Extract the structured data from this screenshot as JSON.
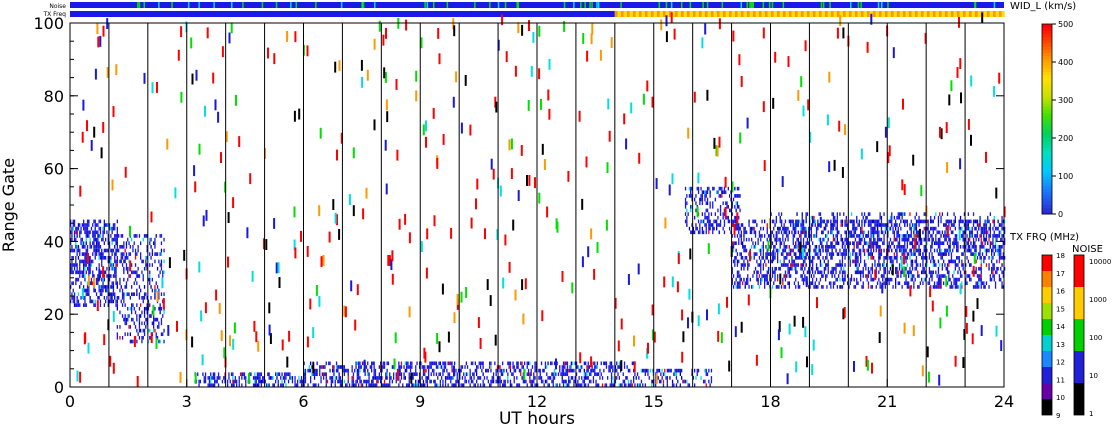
{
  "chart_data": [
    {
      "type": "heatmap",
      "title": "",
      "xlabel": "UT hours",
      "ylabel": "Range Gate",
      "xlim": [
        0,
        24
      ],
      "ylim": [
        0,
        100
      ],
      "xticks": [
        0,
        3,
        6,
        9,
        12,
        15,
        18,
        21,
        24
      ],
      "yticks": [
        0,
        20,
        40,
        60,
        80,
        100
      ],
      "hour_gridlines": [
        1,
        2,
        3,
        4,
        5,
        6,
        7,
        8,
        9,
        10,
        11,
        12,
        13,
        14,
        15,
        16,
        17,
        18,
        19,
        20,
        21,
        22,
        23
      ],
      "color_quantity": "WID_L (km/s)",
      "scatter_regions": [
        {
          "x": [
            0,
            1.2
          ],
          "gates": [
            22,
            46
          ],
          "density": 0.9
        },
        {
          "x": [
            1.2,
            2.4
          ],
          "gates": [
            12,
            42
          ],
          "density": 0.55
        },
        {
          "x": [
            3.2,
            6.0
          ],
          "gates": [
            0,
            4
          ],
          "density": 0.85
        },
        {
          "x": [
            6.0,
            14.5
          ],
          "gates": [
            0,
            7
          ],
          "density": 0.8
        },
        {
          "x": [
            14.5,
            16.5
          ],
          "gates": [
            0,
            5
          ],
          "density": 0.5
        },
        {
          "x": [
            15.8,
            17.2
          ],
          "gates": [
            42,
            55
          ],
          "density": 0.6
        },
        {
          "x": [
            17.0,
            24.0
          ],
          "gates": [
            27,
            46
          ],
          "density": 0.75
        },
        {
          "x": [
            18.0,
            24.0
          ],
          "gates": [
            36,
            48
          ],
          "density": 0.35
        }
      ]
    },
    {
      "type": "heatmap",
      "title": "Noise",
      "rows": [
        "Noise",
        "TX Freq"
      ],
      "tx_freq_change_hour": 14.0
    }
  ],
  "colorbars": {
    "width": {
      "label": "WID_L (km/s)",
      "ticks": [
        "0",
        "100",
        "200",
        "300",
        "400",
        "500"
      ]
    },
    "tx_freq": {
      "label": "TX FRQ (MHz)",
      "ticks": [
        "9",
        "10",
        "11",
        "12",
        "13",
        "14",
        "15",
        "16",
        "17",
        "18"
      ]
    },
    "noise": {
      "label": "NOISE",
      "ticks": [
        "1",
        "10",
        "100",
        "1000",
        "10000"
      ]
    }
  },
  "strip_labels": {
    "noise": "Noise",
    "tx_freq": "TX Freq"
  },
  "colors": {
    "scatter_main": "#1818e0",
    "scatter_dark": "#0000c0",
    "cyan": "#00e0e0",
    "red": "#ff0000",
    "green": "#00e000",
    "orange": "#ff9900",
    "yellow": "#ffe000",
    "violet": "#6600aa",
    "strip_blue": "#1a1ae6"
  }
}
